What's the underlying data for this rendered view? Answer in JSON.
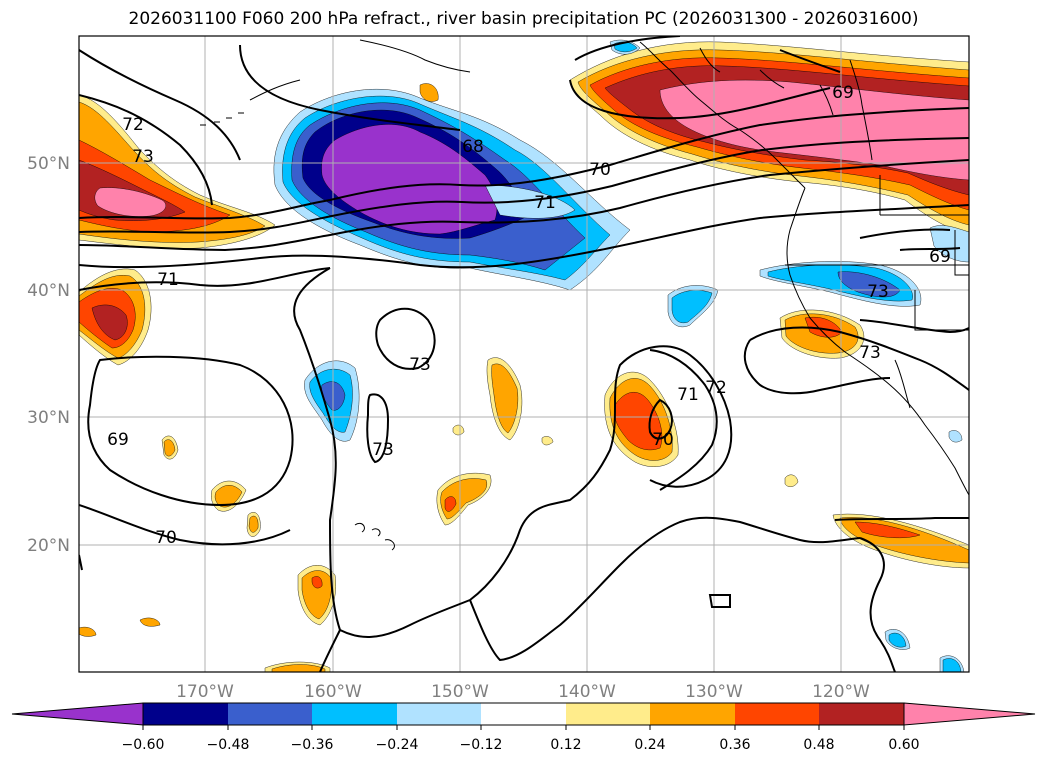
{
  "title": "2026031100 F060 200 hPa refract., river basin precipitation PC (2026031300 - 2026031600)",
  "colors": {
    "neg_060": "#9932cc",
    "neg_048": "#00008b",
    "neg_036": "#3a5fcd",
    "neg_024": "#00bfff",
    "neg_012": "#b0e2ff",
    "neutral": "#ffffff",
    "pos_012": "#ffec8b",
    "pos_024": "#ffa500",
    "pos_036": "#ff4500",
    "pos_048": "#b22222",
    "pos_060": "#ff82ab",
    "grid": "#b0b0b0",
    "coast": "#000000",
    "contour": "#000000"
  },
  "map": {
    "lon_ticks": [
      "170°W",
      "160°W",
      "150°W",
      "140°W",
      "130°W",
      "120°W"
    ],
    "lat_ticks": [
      "50°N",
      "40°N",
      "30°N",
      "20°N"
    ],
    "lon_range": [
      -180,
      -110
    ],
    "lat_range": [
      10,
      60
    ]
  },
  "contour_labels": [
    "72",
    "73",
    "68",
    "70",
    "71",
    "69",
    "71",
    "73",
    "73",
    "73",
    "69",
    "70",
    "71",
    "72",
    "70",
    "73",
    "69"
  ],
  "colorbar": {
    "labels": [
      "−0.60",
      "−0.48",
      "−0.36",
      "−0.24",
      "−0.12",
      "0.12",
      "0.24",
      "0.36",
      "0.48",
      "0.60"
    ],
    "levels": [
      -0.6,
      -0.48,
      -0.36,
      -0.24,
      -0.12,
      0.12,
      0.24,
      0.36,
      0.48,
      0.6
    ]
  }
}
